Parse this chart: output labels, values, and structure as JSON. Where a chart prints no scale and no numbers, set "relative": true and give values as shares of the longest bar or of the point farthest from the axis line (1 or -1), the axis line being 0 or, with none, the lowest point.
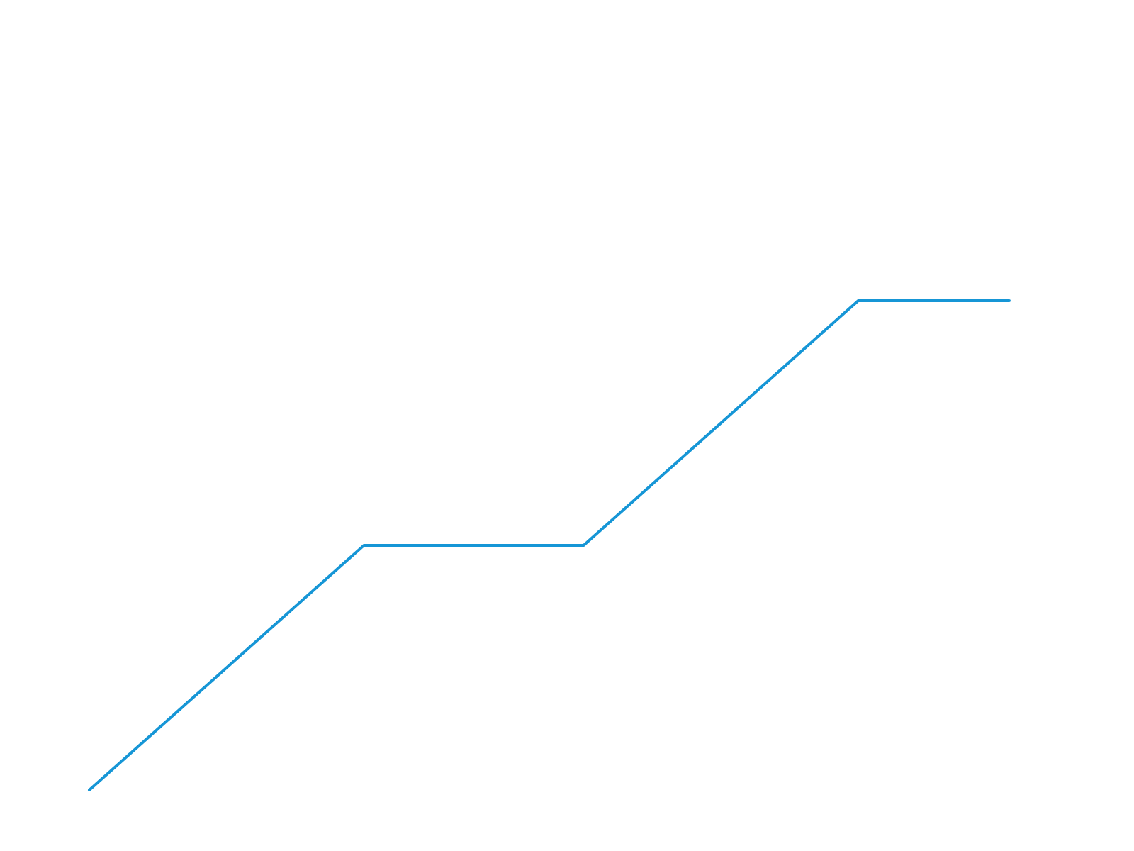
{
  "chart_data": {
    "type": "line",
    "relative": true,
    "categories": [
      null,
      null,
      null,
      null,
      null,
      null,
      null,
      null,
      null,
      null,
      null,
      null,
      null,
      null,
      null,
      null,
      null,
      null,
      null,
      null,
      null,
      null,
      null,
      null,
      null,
      null,
      null,
      null,
      null,
      null,
      null,
      null,
      null,
      null,
      null,
      null,
      null,
      null,
      null,
      null,
      null,
      null,
      null,
      null,
      null,
      null,
      null,
      null,
      null,
      null,
      null,
      null,
      null,
      null,
      null,
      null,
      null,
      null,
      null,
      null,
      null,
      null,
      null,
      null,
      null,
      null,
      null,
      null
    ],
    "values": [
      0,
      0.025,
      0.05,
      0.075,
      0.1,
      0.125,
      0.15,
      0.175,
      0.2,
      0.225,
      0.25,
      0.275,
      0.3,
      0.325,
      0.35,
      0.375,
      0.4,
      0.425,
      0.45,
      0.475,
      0.5,
      0.5,
      0.5,
      0.5,
      0.5,
      0.5,
      0.5,
      0.5,
      0.5,
      0.5,
      0.5,
      0.5,
      0.5,
      0.5,
      0.5,
      0.5,
      0.5,
      0.525,
      0.55,
      0.575,
      0.6,
      0.625,
      0.65,
      0.675,
      0.7,
      0.725,
      0.75,
      0.775,
      0.8,
      0.825,
      0.85,
      0.875,
      0.9,
      0.925,
      0.95,
      0.975,
      1,
      1,
      1,
      1,
      1,
      1,
      1,
      1,
      1,
      1,
      1,
      1
    ],
    "color": "#1696d6",
    "marker": "none",
    "line_style": "solid"
  }
}
